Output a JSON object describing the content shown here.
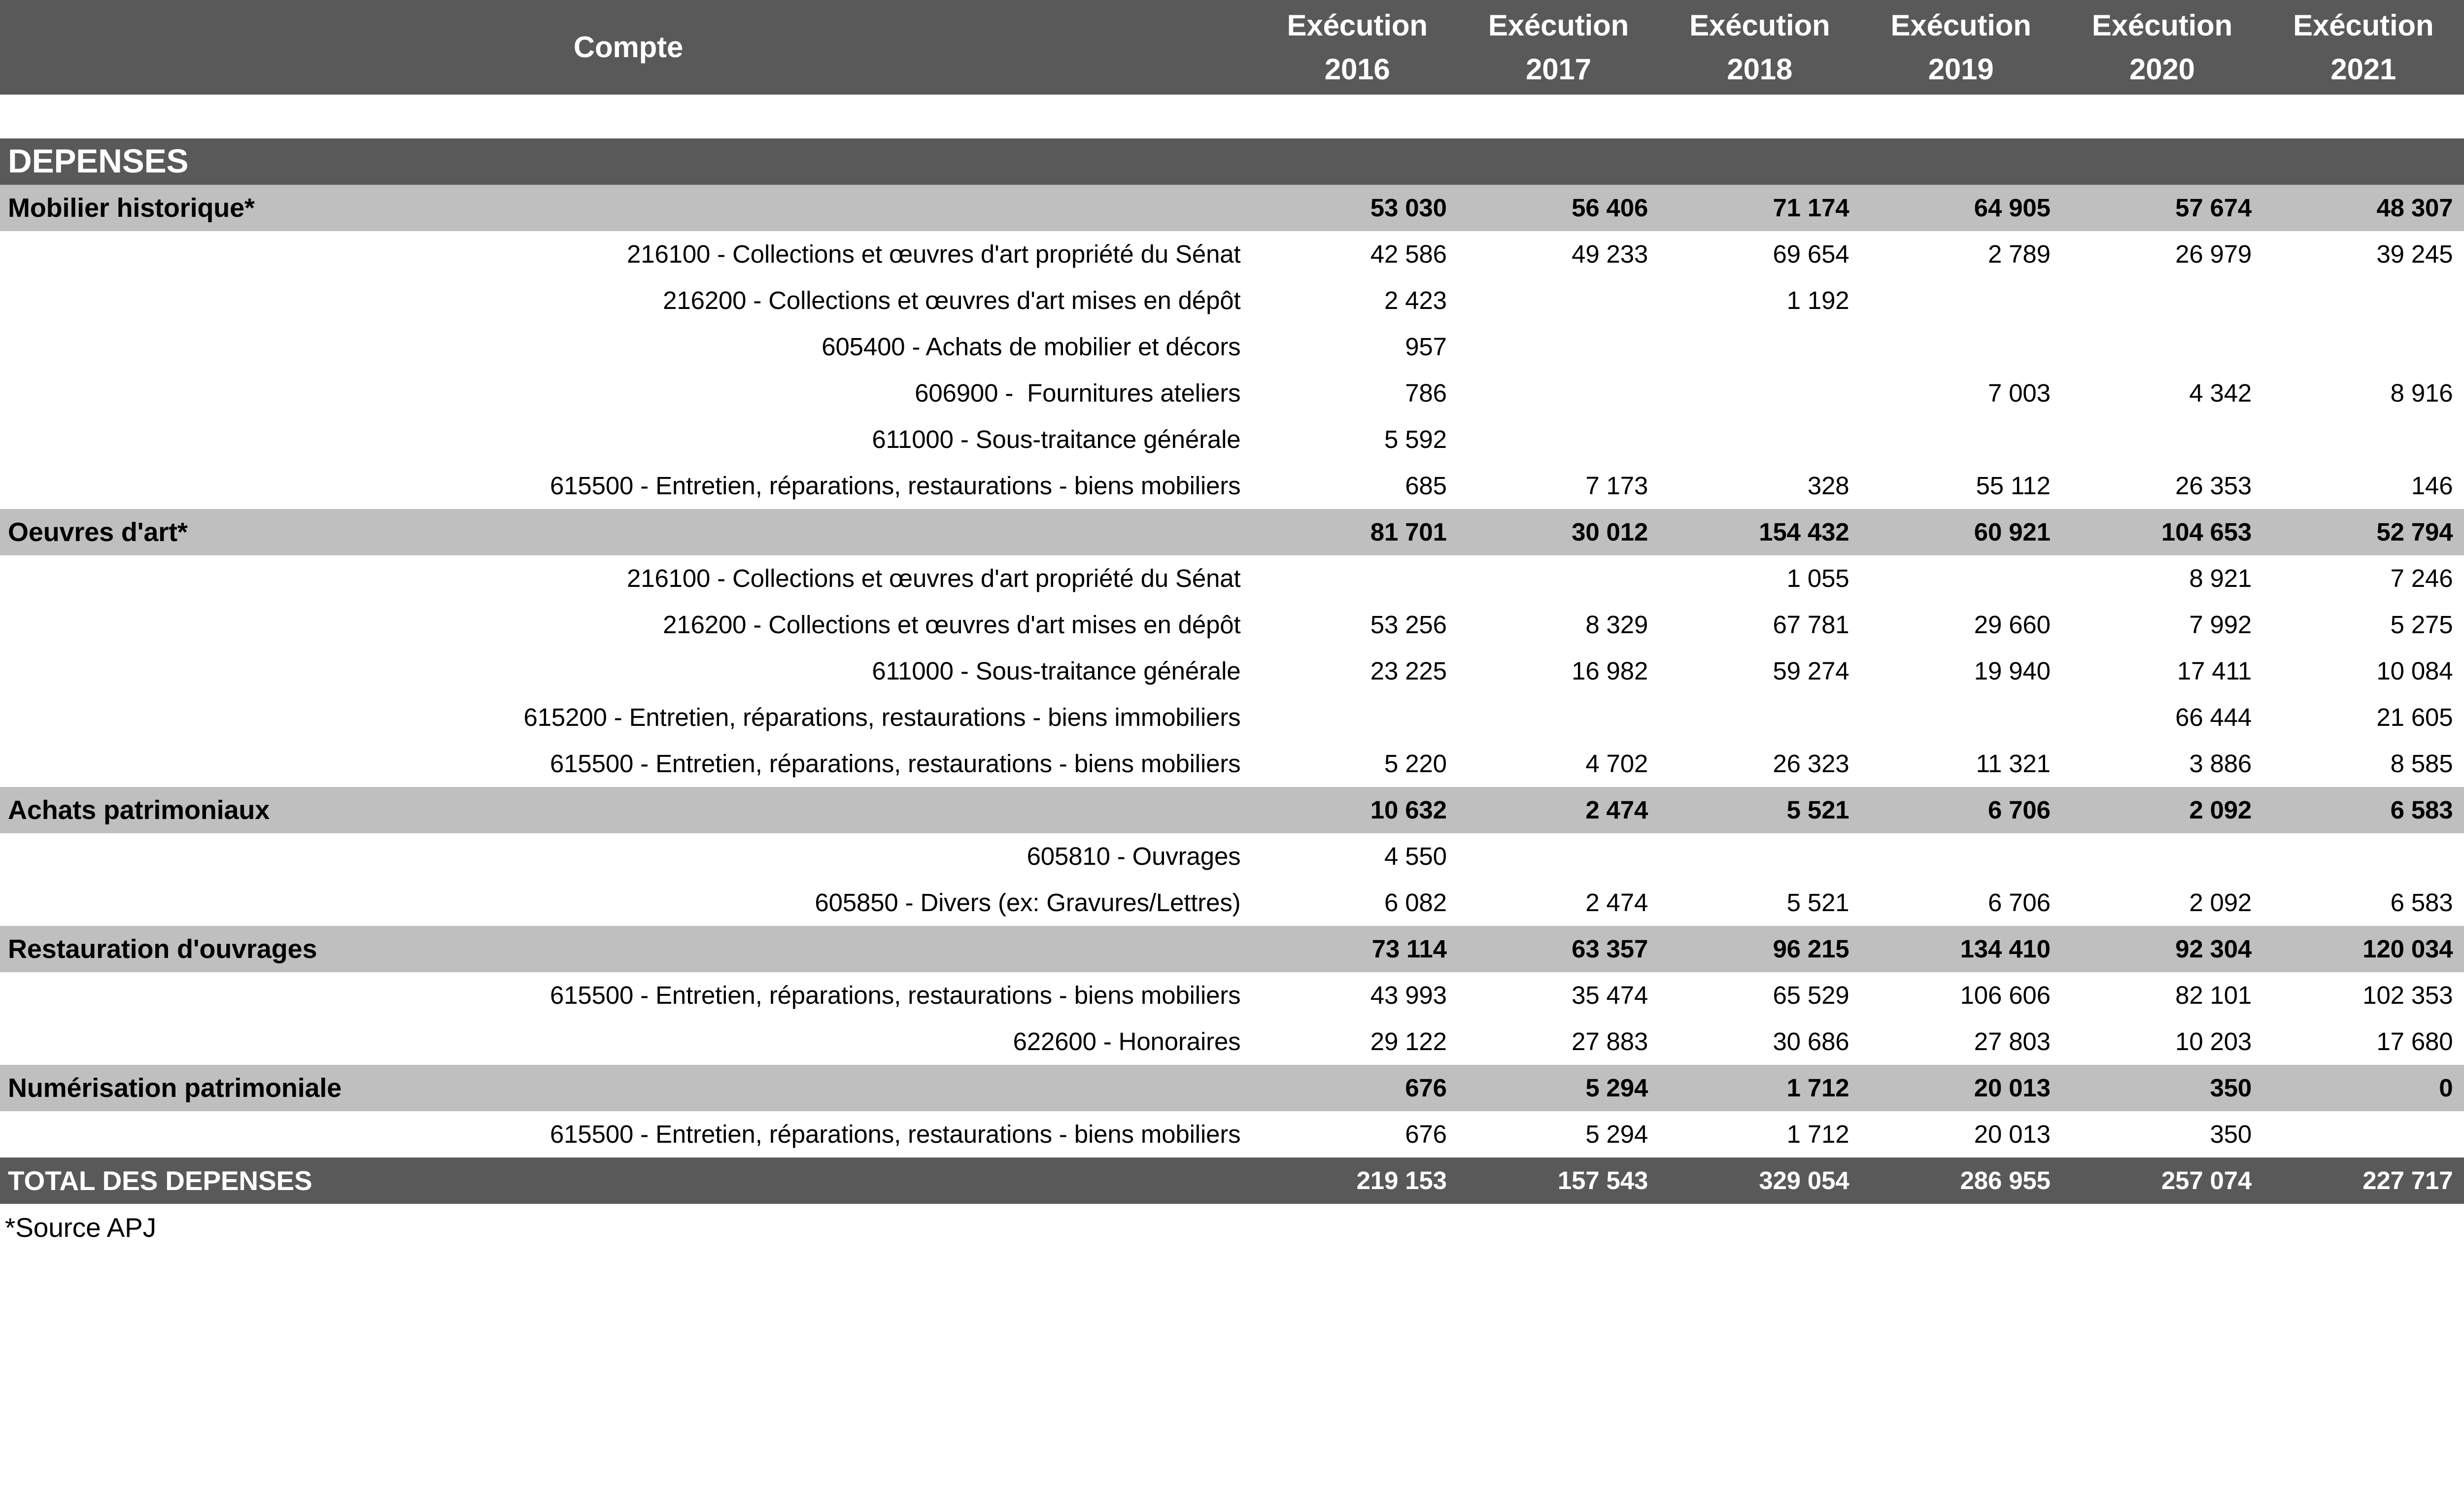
{
  "colors": {
    "header_background": "#595959",
    "category_row_background": "#BFBFBF",
    "total_row_background": "#595959",
    "header_text": "#FFFFFF",
    "body_text": "#000000"
  },
  "table": {
    "compte_header": "Compte",
    "header_cols": [
      {
        "line1": "Exécution",
        "line2": "2016"
      },
      {
        "line1": "Exécution",
        "line2": "2017"
      },
      {
        "line1": "Exécution",
        "line2": "2018"
      },
      {
        "line1": "Exécution",
        "line2": "2019"
      },
      {
        "line1": "Exécution",
        "line2": "2020"
      },
      {
        "line1": "Exécution",
        "line2": "2021"
      }
    ],
    "rows": [
      {
        "type": "section",
        "label": "DEPENSES",
        "values": [
          "",
          "",
          "",
          "",
          "",
          ""
        ]
      },
      {
        "type": "category",
        "label": "Mobilier historique*",
        "values": [
          "53 030",
          "56 406",
          "71 174",
          "64 905",
          "57 674",
          "48 307"
        ]
      },
      {
        "type": "account",
        "label": "216100 - Collections et œuvres d'art propriété du Sénat",
        "values": [
          "42 586",
          "49 233",
          "69 654",
          "2 789",
          "26 979",
          "39 245"
        ]
      },
      {
        "type": "account",
        "label": "216200 - Collections et œuvres d'art mises en dépôt",
        "values": [
          "2 423",
          "",
          "1 192",
          "",
          "",
          ""
        ]
      },
      {
        "type": "account",
        "label": "605400 - Achats de mobilier et décors",
        "values": [
          "957",
          "",
          "",
          "",
          "",
          ""
        ]
      },
      {
        "type": "account",
        "label": "606900 -  Fournitures ateliers",
        "values": [
          "786",
          "",
          "",
          "7 003",
          "4 342",
          "8 916"
        ]
      },
      {
        "type": "account",
        "label": "611000 - Sous-traitance générale",
        "values": [
          "5 592",
          "",
          "",
          "",
          "",
          ""
        ]
      },
      {
        "type": "account",
        "label": "615500 - Entretien, réparations, restaurations - biens mobiliers",
        "values": [
          "685",
          "7 173",
          "328",
          "55 112",
          "26 353",
          "146"
        ]
      },
      {
        "type": "category",
        "label": "Oeuvres d'art*",
        "values": [
          "81 701",
          "30 012",
          "154 432",
          "60 921",
          "104 653",
          "52 794"
        ]
      },
      {
        "type": "account",
        "label": "216100 - Collections et œuvres d'art propriété du Sénat",
        "values": [
          "",
          "",
          "1 055",
          "",
          "8 921",
          "7 246"
        ]
      },
      {
        "type": "account",
        "label": "216200 - Collections et œuvres d'art mises en dépôt",
        "values": [
          "53 256",
          "8 329",
          "67 781",
          "29 660",
          "7 992",
          "5 275"
        ]
      },
      {
        "type": "account",
        "label": "611000 - Sous-traitance générale",
        "values": [
          "23 225",
          "16 982",
          "59 274",
          "19 940",
          "17 411",
          "10 084"
        ]
      },
      {
        "type": "account",
        "label": "615200 - Entretien, réparations, restaurations - biens immobiliers",
        "values": [
          "",
          "",
          "",
          "",
          "66 444",
          "21 605"
        ]
      },
      {
        "type": "account",
        "label": "615500 - Entretien, réparations, restaurations - biens mobiliers",
        "values": [
          "5 220",
          "4 702",
          "26 323",
          "11 321",
          "3 886",
          "8 585"
        ]
      },
      {
        "type": "category",
        "label": "Achats patrimoniaux",
        "values": [
          "10 632",
          "2 474",
          "5 521",
          "6 706",
          "2 092",
          "6 583"
        ]
      },
      {
        "type": "account",
        "label": "605810 - Ouvrages",
        "values": [
          "4 550",
          "",
          "",
          "",
          "",
          ""
        ]
      },
      {
        "type": "account",
        "label": "605850 - Divers (ex: Gravures/Lettres)",
        "values": [
          "6 082",
          "2 474",
          "5 521",
          "6 706",
          "2 092",
          "6 583"
        ]
      },
      {
        "type": "category",
        "label": "Restauration d'ouvrages",
        "values": [
          "73 114",
          "63 357",
          "96 215",
          "134 410",
          "92 304",
          "120 034"
        ]
      },
      {
        "type": "account",
        "label": "615500 - Entretien, réparations, restaurations - biens mobiliers",
        "values": [
          "43 993",
          "35 474",
          "65 529",
          "106 606",
          "82 101",
          "102 353"
        ]
      },
      {
        "type": "account",
        "label": "622600 - Honoraires",
        "values": [
          "29 122",
          "27 883",
          "30 686",
          "27 803",
          "10 203",
          "17 680"
        ]
      },
      {
        "type": "category",
        "label": "Numérisation patrimoniale",
        "values": [
          "676",
          "5 294",
          "1 712",
          "20 013",
          "350",
          "0"
        ]
      },
      {
        "type": "account",
        "label": "615500 - Entretien, réparations, restaurations - biens mobiliers",
        "values": [
          "676",
          "5 294",
          "1 712",
          "20 013",
          "350",
          ""
        ]
      },
      {
        "type": "total",
        "label": "TOTAL DES DEPENSES",
        "values": [
          "219 153",
          "157 543",
          "329 054",
          "286 955",
          "257 074",
          "227 717"
        ]
      }
    ],
    "footnote": "*Source APJ"
  }
}
